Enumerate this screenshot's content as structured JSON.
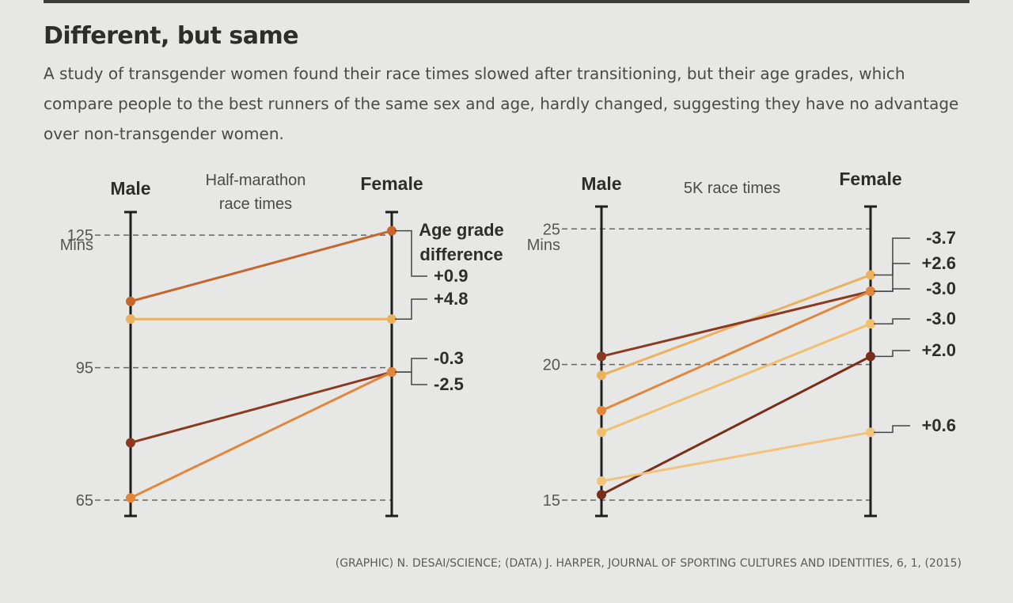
{
  "header": {
    "title": "Different, but same",
    "subtitle": "A study of transgender women found their race times slowed after transitioning, but their age grades, which compare people to the best runners of the same sex and age, hardly changed, suggesting they have no advantage over non-transgender women."
  },
  "credit": "(GRAPHIC) N. DESAI/SCIENCE; (DATA) J. HARPER, JOURNAL OF SPORTING CULTURES AND IDENTITIES, 6, 1, (2015)",
  "chart_data": [
    {
      "type": "slope",
      "title": "Half-marathon race times",
      "x_categories": [
        "Male",
        "Female"
      ],
      "y_unit": "Mins",
      "y_ticks": [
        125,
        95,
        65
      ],
      "ylim": [
        65,
        127
      ],
      "legend_title": "Age grade difference",
      "series": [
        {
          "color": "#c4662e",
          "male": 110,
          "female": 126,
          "label": "+0.9"
        },
        {
          "color": "#eab25e",
          "male": 106,
          "female": 106,
          "label": "+4.8"
        },
        {
          "color": "#8a3a22",
          "male": 78,
          "female": 94,
          "label": "-0.3"
        },
        {
          "color": "#e2863c",
          "male": 65.5,
          "female": 94,
          "label": "-2.5"
        }
      ]
    },
    {
      "type": "slope",
      "title": "5K race times",
      "x_categories": [
        "Male",
        "Female"
      ],
      "y_unit": "Mins",
      "y_ticks": [
        25,
        20,
        15
      ],
      "ylim": [
        15,
        25.3
      ],
      "series": [
        {
          "color": "#eab25e",
          "male": 19.6,
          "female": 23.3,
          "label": "-3.7"
        },
        {
          "color": "#8a3a22",
          "male": 20.3,
          "female": 22.7,
          "label": "+2.6"
        },
        {
          "color": "#e2863c",
          "male": 18.3,
          "female": 22.7,
          "label": "-3.0"
        },
        {
          "color": "#f0bf6e",
          "male": 17.5,
          "female": 21.5,
          "label": "-3.0"
        },
        {
          "color": "#7a2e1a",
          "male": 15.2,
          "female": 20.3,
          "label": "+2.0"
        },
        {
          "color": "#f2c37a",
          "male": 15.7,
          "female": 17.5,
          "label": "+0.6"
        }
      ]
    }
  ]
}
